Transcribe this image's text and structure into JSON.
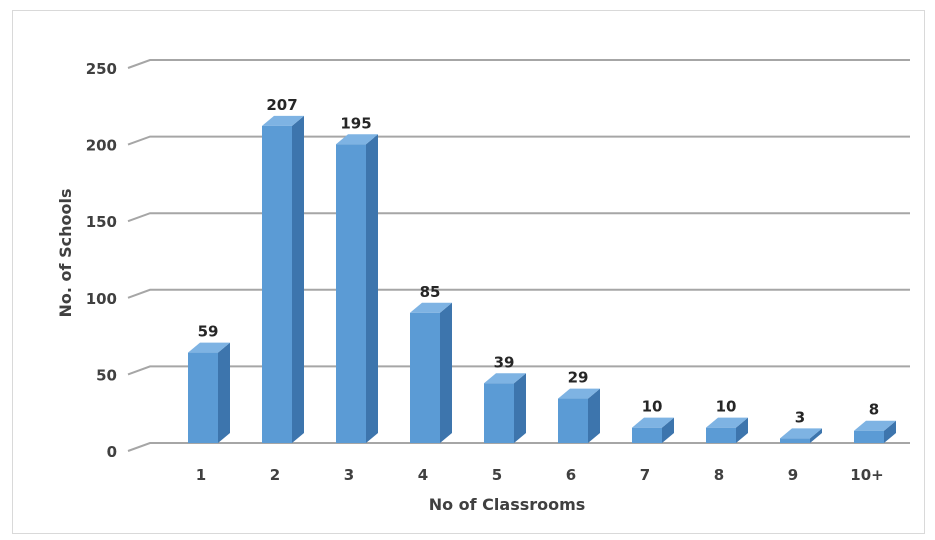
{
  "chart_data": {
    "type": "bar",
    "title": "",
    "xlabel": "No of Classrooms",
    "ylabel": "No. of Schools",
    "categories": [
      "1",
      "2",
      "3",
      "4",
      "5",
      "6",
      "7",
      "8",
      "9",
      "10+"
    ],
    "values": [
      59,
      207,
      195,
      85,
      39,
      29,
      10,
      10,
      3,
      8
    ],
    "ylim": [
      0,
      250
    ],
    "yticks": [
      "0",
      "50",
      "100",
      "150",
      "200",
      "250"
    ],
    "grid": true,
    "legend": "none",
    "style": "3d-column",
    "colors": {
      "bar_front": "#5b9bd5",
      "bar_side": "#3d75ad",
      "bar_top": "#7eb3e3",
      "gridline": "#a6a6a6"
    }
  }
}
